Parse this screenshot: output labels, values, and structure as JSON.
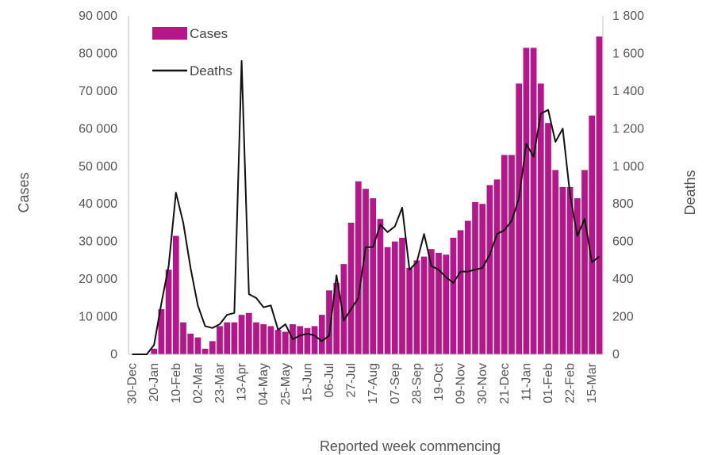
{
  "chart_data": {
    "type": "bar",
    "x_title": "Reported week commencing",
    "y_left_title": "Cases",
    "y_right_title": "Deaths",
    "y_left_range": [
      0,
      90000
    ],
    "y_right_range": [
      0,
      1800
    ],
    "y_left_ticks": [
      "0",
      "10 000",
      "20 000",
      "30 000",
      "40 000",
      "50 000",
      "60 000",
      "70 000",
      "80 000",
      "90 000"
    ],
    "y_right_ticks": [
      "0",
      "200",
      "400",
      "600",
      "800",
      "1 000",
      "1 200",
      "1 400",
      "1 600",
      "1 800"
    ],
    "x_labels": [
      "30-Dec",
      "20-Jan",
      "10-Feb",
      "02-Mar",
      "23-Mar",
      "13-Apr",
      "04-May",
      "25-May",
      "15-Jun",
      "06-Jul",
      "27-Jul",
      "17-Aug",
      "07-Sep",
      "28-Sep",
      "19-Oct",
      "09-Nov",
      "30-Nov",
      "21-Dec",
      "11-Jan",
      "01-Feb",
      "22-Feb",
      "15-Mar"
    ],
    "x_label_every": 3,
    "grid": false,
    "legend_position": "top-left",
    "series": [
      {
        "name": "Cases",
        "kind": "bar",
        "color": "#b5178a",
        "values": [
          0,
          0,
          0,
          1500,
          12000,
          22500,
          31500,
          8500,
          5500,
          4500,
          1500,
          3500,
          7500,
          8500,
          8500,
          10500,
          11000,
          8500,
          8000,
          7500,
          6500,
          6000,
          8000,
          7500,
          7000,
          7500,
          10500,
          17000,
          19000,
          24000,
          35000,
          46000,
          44000,
          41500,
          36000,
          28500,
          30000,
          31000,
          23000,
          25000,
          26000,
          28000,
          27000,
          26500,
          31000,
          33000,
          35500,
          40500,
          40000,
          45000,
          46500,
          53000,
          53000,
          72000,
          81500,
          81500,
          72000,
          61500,
          49000,
          44500,
          44500,
          41500,
          49000,
          63500,
          84500
        ]
      },
      {
        "name": "Deaths",
        "kind": "line",
        "color": "#111111",
        "values": [
          0,
          0,
          0,
          50,
          270,
          470,
          860,
          700,
          460,
          260,
          150,
          140,
          160,
          210,
          220,
          1560,
          320,
          300,
          250,
          260,
          130,
          160,
          80,
          100,
          110,
          100,
          70,
          100,
          420,
          180,
          240,
          300,
          570,
          570,
          690,
          650,
          680,
          780,
          450,
          490,
          640,
          470,
          450,
          410,
          380,
          440,
          440,
          450,
          460,
          530,
          640,
          660,
          710,
          830,
          1120,
          1050,
          1280,
          1300,
          1130,
          1200,
          850,
          630,
          720,
          490,
          520
        ]
      }
    ]
  }
}
